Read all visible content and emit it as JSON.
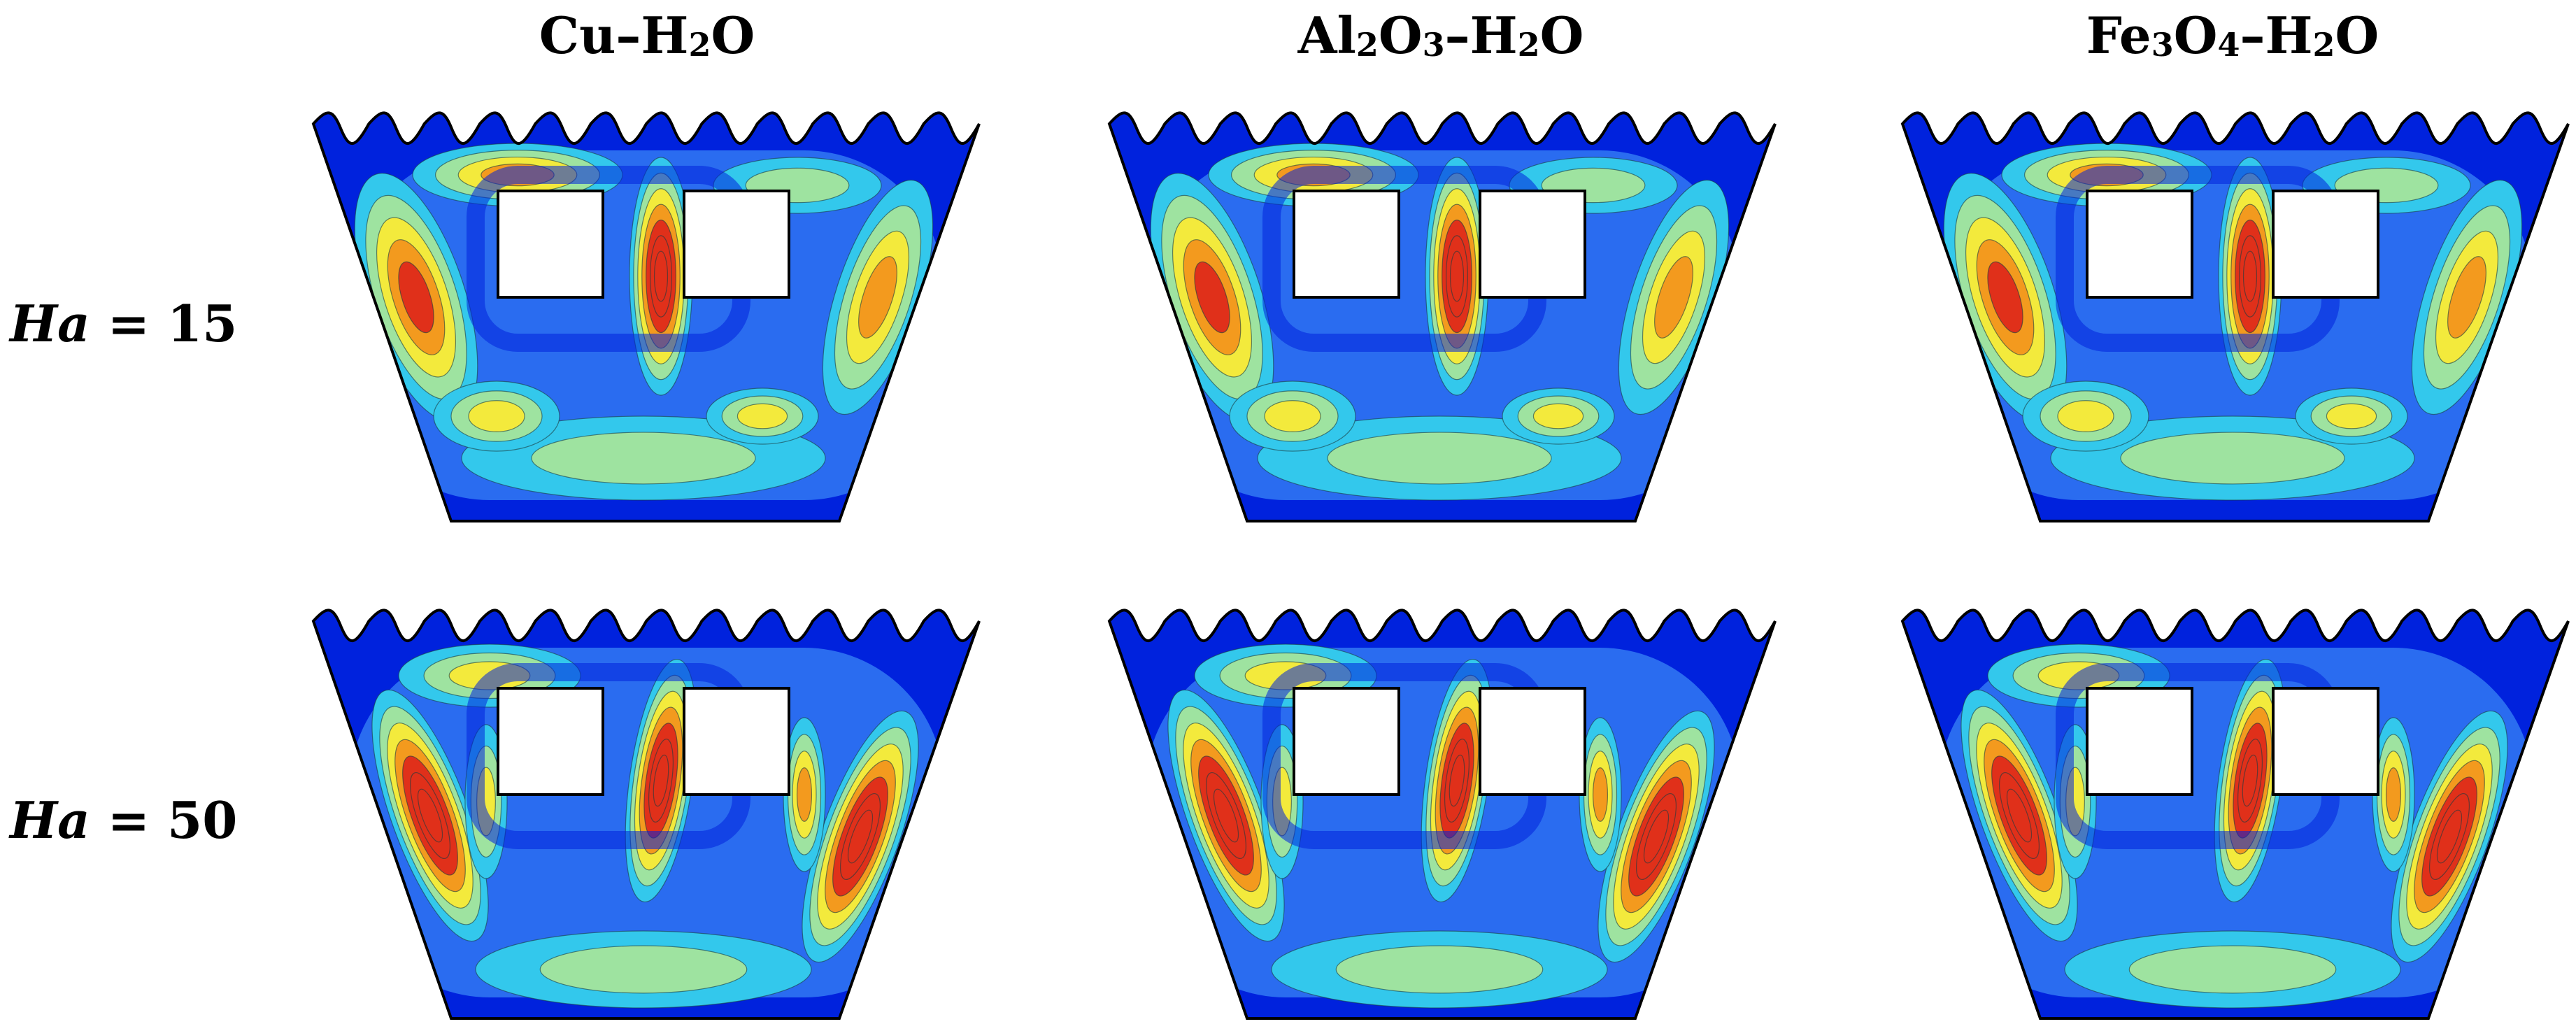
{
  "columns": [
    {
      "material": "Cu",
      "parts": [
        {
          "t": "Cu–H"
        },
        {
          "t": "2",
          "sub": true
        },
        {
          "t": "O"
        }
      ]
    },
    {
      "material": "Al2O3",
      "parts": [
        {
          "t": "Al"
        },
        {
          "t": "2",
          "sub": true
        },
        {
          "t": "O"
        },
        {
          "t": "3",
          "sub": true
        },
        {
          "t": "–H"
        },
        {
          "t": "2",
          "sub": true
        },
        {
          "t": "O"
        }
      ]
    },
    {
      "material": "Fe3O4",
      "parts": [
        {
          "t": "Fe"
        },
        {
          "t": "3",
          "sub": true
        },
        {
          "t": "O"
        },
        {
          "t": "4",
          "sub": true
        },
        {
          "t": "–H"
        },
        {
          "t": "2",
          "sub": true
        },
        {
          "t": "O"
        }
      ]
    }
  ],
  "rows": [
    {
      "symbol": "Ha",
      "eq": " = ",
      "value": "15"
    },
    {
      "symbol": "Ha",
      "eq": " = ",
      "value": "50"
    }
  ],
  "colormap": [
    "#0022dd",
    "#2a6cf0",
    "#33c8ec",
    "#9ee3a0",
    "#f3ea3c",
    "#f39a1e",
    "#e0301a"
  ],
  "wall_color": "#000000",
  "cylinder_fill": "#ffffff"
}
